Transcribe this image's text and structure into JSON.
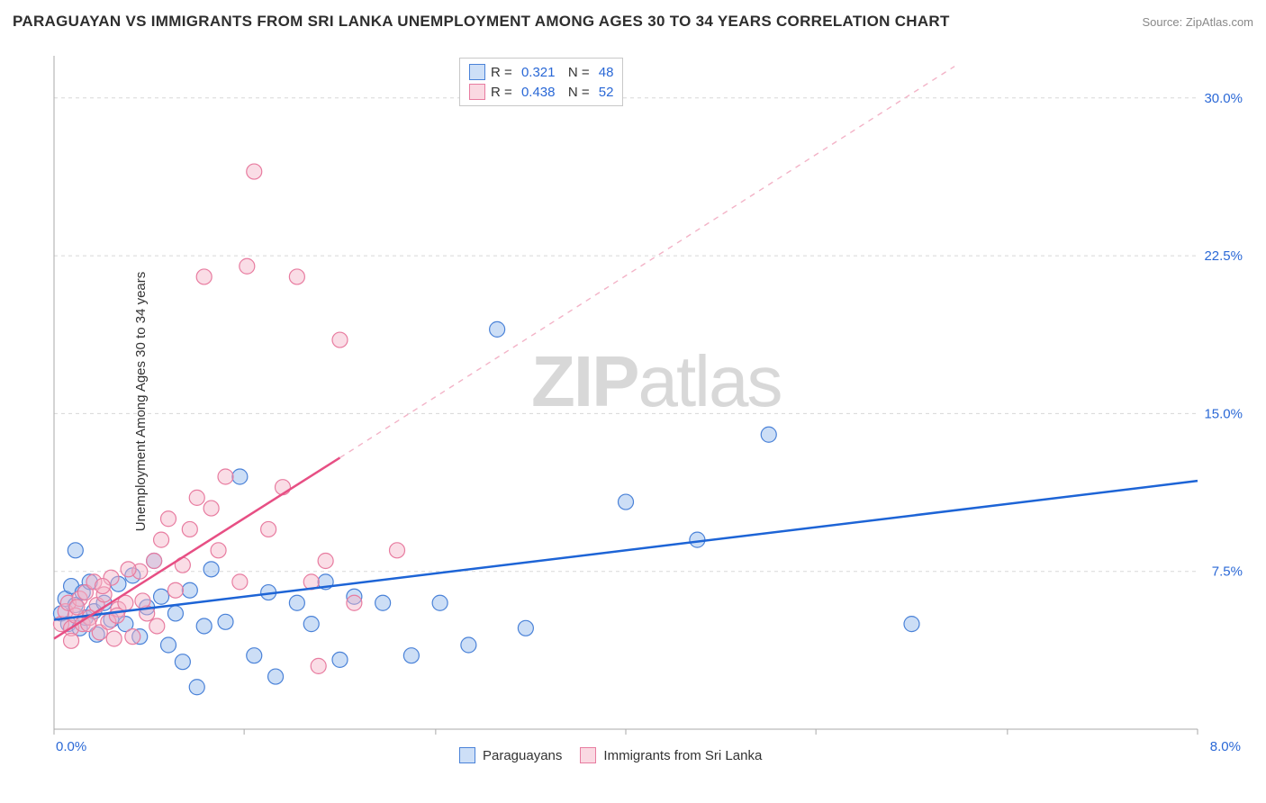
{
  "title": "PARAGUAYAN VS IMMIGRANTS FROM SRI LANKA UNEMPLOYMENT AMONG AGES 30 TO 34 YEARS CORRELATION CHART",
  "source": "Source: ZipAtlas.com",
  "ylabel": "Unemployment Among Ages 30 to 34 years",
  "watermark_a": "ZIP",
  "watermark_b": "atlas",
  "chart": {
    "type": "scatter",
    "xlim": [
      0,
      8.0
    ],
    "ylim": [
      0,
      32
    ],
    "x_ticks": [
      0.0,
      1.33,
      2.67,
      4.0,
      5.33,
      6.67,
      8.0
    ],
    "x_tick_labels": [
      "0.0%",
      "",
      "",
      "",
      "",
      "",
      "8.0%"
    ],
    "y_gridlines": [
      7.5,
      15.0,
      22.5,
      30.0
    ],
    "y_tick_labels": [
      "7.5%",
      "15.0%",
      "22.5%",
      "30.0%"
    ],
    "background_color": "#ffffff",
    "grid_color": "#d8d8d8",
    "grid_dash": "4 4",
    "axis_color": "#aaaaaa",
    "marker_radius": 8.5,
    "marker_opacity": 0.45,
    "series": [
      {
        "name": "Paraguayans",
        "color_fill": "#8fb6ec",
        "color_stroke": "#4a82d8",
        "r_value": "0.321",
        "n_value": "48",
        "trend": {
          "x1": 0.0,
          "y1": 5.2,
          "x2": 8.0,
          "y2": 11.8,
          "dash": "none",
          "width": 2.5,
          "color": "#1d64d6"
        },
        "points": [
          [
            0.05,
            5.5
          ],
          [
            0.08,
            6.2
          ],
          [
            0.1,
            5.0
          ],
          [
            0.12,
            6.8
          ],
          [
            0.15,
            5.9
          ],
          [
            0.18,
            4.8
          ],
          [
            0.2,
            6.5
          ],
          [
            0.22,
            5.3
          ],
          [
            0.25,
            7.0
          ],
          [
            0.28,
            5.6
          ],
          [
            0.3,
            4.5
          ],
          [
            0.35,
            6.0
          ],
          [
            0.4,
            5.2
          ],
          [
            0.45,
            6.9
          ],
          [
            0.5,
            5.0
          ],
          [
            0.55,
            7.3
          ],
          [
            0.6,
            4.4
          ],
          [
            0.65,
            5.8
          ],
          [
            0.7,
            8.0
          ],
          [
            0.75,
            6.3
          ],
          [
            0.8,
            4.0
          ],
          [
            0.85,
            5.5
          ],
          [
            0.9,
            3.2
          ],
          [
            0.95,
            6.6
          ],
          [
            1.0,
            2.0
          ],
          [
            1.05,
            4.9
          ],
          [
            1.1,
            7.6
          ],
          [
            1.2,
            5.1
          ],
          [
            1.3,
            12.0
          ],
          [
            1.4,
            3.5
          ],
          [
            1.5,
            6.5
          ],
          [
            1.55,
            2.5
          ],
          [
            1.7,
            6.0
          ],
          [
            1.8,
            5.0
          ],
          [
            1.9,
            7.0
          ],
          [
            2.0,
            3.3
          ],
          [
            2.1,
            6.3
          ],
          [
            2.3,
            6.0
          ],
          [
            2.5,
            3.5
          ],
          [
            2.7,
            6.0
          ],
          [
            2.9,
            4.0
          ],
          [
            3.1,
            19.0
          ],
          [
            3.3,
            4.8
          ],
          [
            4.0,
            10.8
          ],
          [
            4.5,
            9.0
          ],
          [
            5.0,
            14.0
          ],
          [
            6.0,
            5.0
          ],
          [
            0.15,
            8.5
          ]
        ]
      },
      {
        "name": "Immigrants from Sri Lanka",
        "color_fill": "#f3b3c7",
        "color_stroke": "#e87ca0",
        "r_value": "0.438",
        "n_value": "52",
        "trend_solid": {
          "x1": 0.0,
          "y1": 4.3,
          "x2": 2.0,
          "y2": 12.9,
          "width": 2.5,
          "color": "#e74f84"
        },
        "trend_dash": {
          "x1": 2.0,
          "y1": 12.9,
          "x2": 6.3,
          "y2": 31.5,
          "dash": "6 6",
          "width": 1.4,
          "color": "#f3b3c7"
        },
        "points": [
          [
            0.05,
            5.0
          ],
          [
            0.08,
            5.6
          ],
          [
            0.1,
            6.0
          ],
          [
            0.12,
            4.8
          ],
          [
            0.15,
            5.4
          ],
          [
            0.18,
            6.2
          ],
          [
            0.2,
            5.0
          ],
          [
            0.22,
            6.5
          ],
          [
            0.25,
            5.3
          ],
          [
            0.28,
            7.0
          ],
          [
            0.3,
            5.9
          ],
          [
            0.32,
            4.6
          ],
          [
            0.35,
            6.4
          ],
          [
            0.38,
            5.1
          ],
          [
            0.4,
            7.2
          ],
          [
            0.45,
            5.7
          ],
          [
            0.5,
            6.0
          ],
          [
            0.55,
            4.4
          ],
          [
            0.6,
            7.5
          ],
          [
            0.65,
            5.5
          ],
          [
            0.7,
            8.0
          ],
          [
            0.75,
            9.0
          ],
          [
            0.8,
            10.0
          ],
          [
            0.85,
            6.6
          ],
          [
            0.9,
            7.8
          ],
          [
            0.95,
            9.5
          ],
          [
            1.0,
            11.0
          ],
          [
            1.05,
            21.5
          ],
          [
            1.1,
            10.5
          ],
          [
            1.15,
            8.5
          ],
          [
            1.2,
            12.0
          ],
          [
            1.3,
            7.0
          ],
          [
            1.35,
            22.0
          ],
          [
            1.4,
            26.5
          ],
          [
            1.5,
            9.5
          ],
          [
            1.6,
            11.5
          ],
          [
            1.7,
            21.5
          ],
          [
            1.8,
            7.0
          ],
          [
            1.85,
            3.0
          ],
          [
            1.9,
            8.0
          ],
          [
            2.0,
            18.5
          ],
          [
            2.1,
            6.0
          ],
          [
            2.4,
            8.5
          ],
          [
            0.12,
            4.2
          ],
          [
            0.16,
            5.8
          ],
          [
            0.24,
            5.0
          ],
          [
            0.34,
            6.8
          ],
          [
            0.44,
            5.4
          ],
          [
            0.52,
            7.6
          ],
          [
            0.62,
            6.1
          ],
          [
            0.72,
            4.9
          ],
          [
            0.42,
            4.3
          ]
        ]
      }
    ]
  },
  "legend_bottom": {
    "item1": "Paraguayans",
    "item2": "Immigrants from Sri Lanka"
  }
}
